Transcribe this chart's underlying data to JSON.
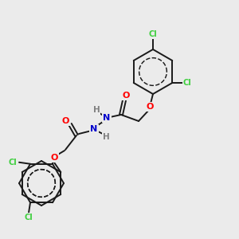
{
  "background_color": "#ebebeb",
  "bond_color": "#1a1a1a",
  "atom_colors": {
    "Cl": "#3ecf3e",
    "O": "#ff0000",
    "N": "#0000cc",
    "H": "#808080",
    "C": "#1a1a1a"
  },
  "figsize": [
    3.0,
    3.0
  ],
  "dpi": 100
}
